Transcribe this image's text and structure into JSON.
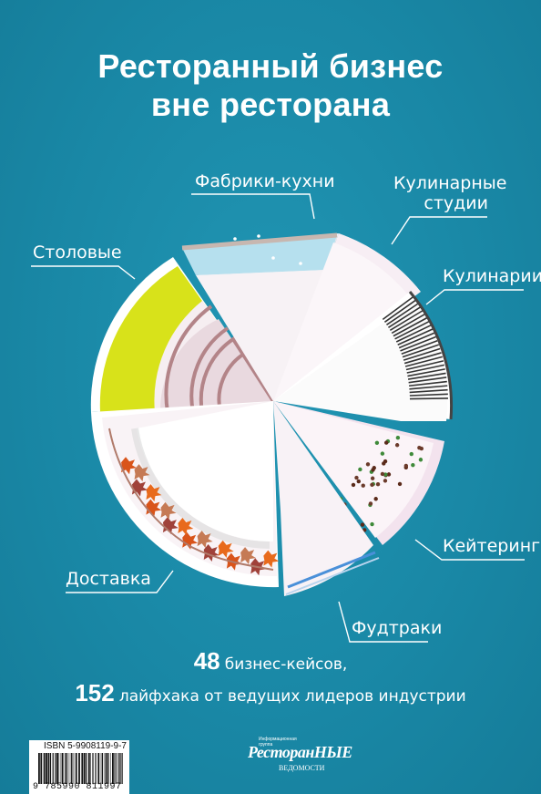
{
  "title": {
    "line1": "Ресторанный бизнес",
    "line2": "вне ресторана"
  },
  "segments": [
    {
      "id": "factories",
      "label": "Фабрики-кухни"
    },
    {
      "id": "studios",
      "label_line1": "Кулинарные",
      "label_line2": "студии"
    },
    {
      "id": "culinary",
      "label": "Кулинарии"
    },
    {
      "id": "canteens",
      "label": "Столовые"
    },
    {
      "id": "catering",
      "label": "Кейтеринг"
    },
    {
      "id": "delivery",
      "label": "Доставка"
    },
    {
      "id": "foodtrucks",
      "label": "Фудтраки"
    }
  ],
  "tagline": {
    "num1": "48",
    "text1": "бизнес-кейсов,",
    "num2": "152",
    "text2": "лайфхака от ведущих лидеров индустрии"
  },
  "isbn": {
    "label": "ISBN 5-9908119-9-7",
    "barcode_digits": "9 785990 811997"
  },
  "publisher": {
    "small_text": "Информационная группа",
    "name": "РесторанНЫЕ",
    "sub": "ВЕДОМОСТИ"
  },
  "colors": {
    "background": "#1a8aa8",
    "canteen_yellow": "#d8e21a",
    "factory_blue": "#b6e0ee",
    "plate_white": "#fbf8fa",
    "plate_pink": "#f2e6ec"
  }
}
